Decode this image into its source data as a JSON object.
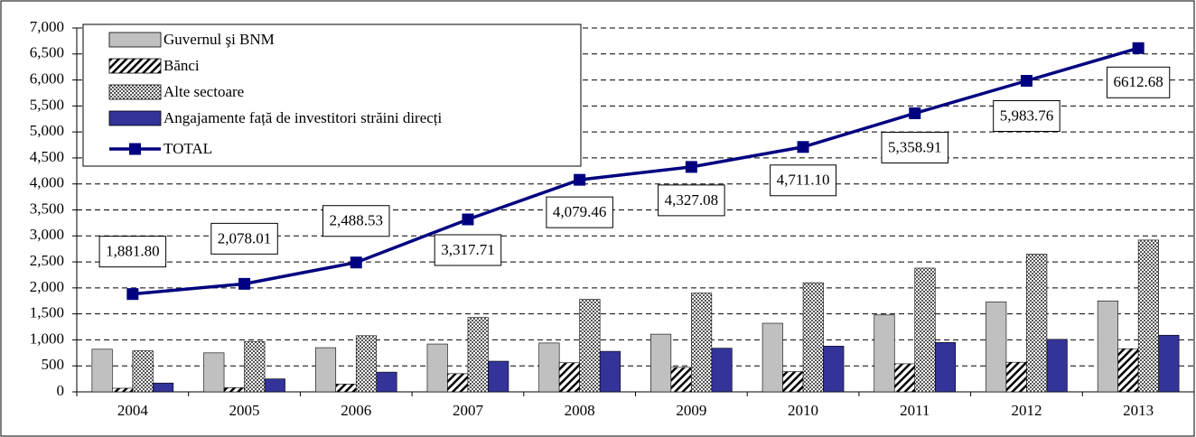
{
  "chart_data": {
    "type": "bar-line",
    "categories": [
      "2004",
      "2005",
      "2006",
      "2007",
      "2008",
      "2009",
      "2010",
      "2011",
      "2012",
      "2013"
    ],
    "series": [
      {
        "name": "Guvernul şi BNM",
        "type": "bar",
        "color": "#c0c0c0",
        "values": [
          820,
          750,
          850,
          920,
          940,
          1110,
          1320,
          1480,
          1730,
          1750
        ]
      },
      {
        "name": "Bănci",
        "type": "bar",
        "color": "#ffffff",
        "pattern": "hatch",
        "values": [
          70,
          80,
          150,
          350,
          560,
          470,
          390,
          540,
          570,
          830
        ]
      },
      {
        "name": "Alte sectoare",
        "type": "bar",
        "color": "#c0c0c0",
        "pattern": "dots",
        "values": [
          790,
          970,
          1080,
          1430,
          1780,
          1900,
          2100,
          2380,
          2650,
          2920
        ]
      },
      {
        "name": "Angajamente față de investitori străini direcți",
        "type": "bar",
        "color": "#333399",
        "values": [
          170,
          250,
          380,
          590,
          780,
          840,
          880,
          950,
          1010,
          1090
        ]
      },
      {
        "name": "TOTAL",
        "type": "line",
        "color": "#000080",
        "values": [
          1881.8,
          2078.01,
          2488.53,
          3317.71,
          4079.46,
          4327.08,
          4711.1,
          5358.91,
          5983.76,
          6612.68
        ],
        "value_labels": [
          "1,881.80",
          "2,078.01",
          "2,488.53",
          "3,317.71",
          "4,079.46",
          "4,327.08",
          "4,711.10",
          "5,358.91",
          "5,983.76",
          "6612.68"
        ]
      }
    ],
    "ylim": [
      0,
      7000
    ],
    "yticks": [
      0,
      500,
      {
        "value": 1000,
        "label": "1,000"
      },
      {
        "value": 1500,
        "label": "1,500"
      },
      {
        "value": 2000,
        "label": "2,000"
      },
      {
        "value": 2500,
        "label": "2,500"
      },
      {
        "value": 3000,
        "label": "3,000"
      },
      {
        "value": 3500,
        "label": "3,500"
      },
      {
        "value": 4000,
        "label": "4,000"
      },
      {
        "value": 4500,
        "label": "4,500"
      },
      {
        "value": 5000,
        "label": "5,000"
      },
      {
        "value": 5500,
        "label": "5,500"
      },
      {
        "value": 6000,
        "label": "6,000"
      },
      {
        "value": 6500,
        "label": "6,500"
      },
      {
        "value": 7000,
        "label": "7,000"
      }
    ],
    "grid": true,
    "legend": "top-left"
  }
}
